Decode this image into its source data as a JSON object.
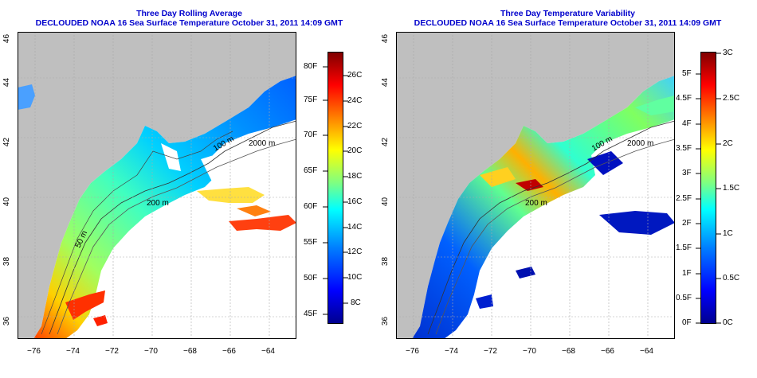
{
  "panels": [
    {
      "title": "Three Day Rolling Average",
      "subtitle": "DECLOUDED NOAA 16 Sea Surface Temperature October 31, 2011 14:09 GMT",
      "x_ticks": [
        "−76",
        "−74",
        "−72",
        "−70",
        "−68",
        "−66",
        "−64"
      ],
      "y_ticks": [
        "36",
        "38",
        "40",
        "42",
        "44",
        "46"
      ],
      "contour_labels": [
        "2000 m",
        "100 m",
        "200 m",
        "50 m"
      ],
      "colorbar": {
        "left_labels": [
          "45F",
          "50F",
          "55F",
          "60F",
          "65F",
          "70F",
          "75F",
          "80F"
        ],
        "right_labels": [
          "8C",
          "10C",
          "12C",
          "14C",
          "16C",
          "18C",
          "20C",
          "22C",
          "24C",
          "26C"
        ]
      }
    },
    {
      "title": "Three Day Temperature Variability",
      "subtitle": "DECLOUDED NOAA 16 Sea Surface Temperature October 31, 2011 14:09 GMT",
      "x_ticks": [
        "−76",
        "−74",
        "−72",
        "−70",
        "−68",
        "−66",
        "−64"
      ],
      "y_ticks": [
        "36",
        "38",
        "40",
        "42",
        "44",
        "46"
      ],
      "contour_labels": [
        "2000 m",
        "100 m",
        "200 m"
      ],
      "colorbar": {
        "left_labels": [
          "0F",
          "0.5F",
          "1F",
          "1.5F",
          "2F",
          "2.5F",
          "3F",
          "3.5F",
          "4F",
          "4.5F",
          "5F"
        ],
        "right_labels": [
          "0C",
          "0.5C",
          "1C",
          "1.5C",
          "2C",
          "2.5C",
          "3C"
        ]
      }
    }
  ],
  "colors": {
    "land": "#bfbfbf",
    "ocean": "#ffffff",
    "title": "#0000cc",
    "grid": "#aaaaaa"
  },
  "colormap": [
    "#00008f",
    "#0000ff",
    "#0080ff",
    "#00ffff",
    "#80ff80",
    "#ffff00",
    "#ff8000",
    "#ff0000",
    "#800000"
  ]
}
